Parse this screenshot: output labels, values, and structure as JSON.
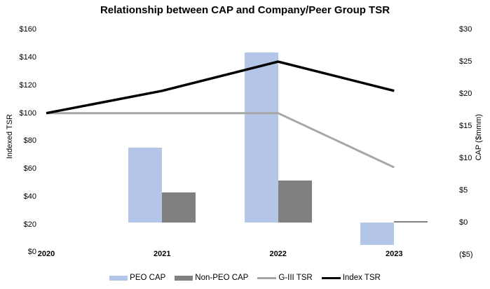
{
  "title": "Relationship between CAP and Company/Peer Group TSR",
  "chart_data": {
    "type": "combo-bar-line",
    "categories": [
      "2020",
      "2021",
      "2022",
      "2023"
    ],
    "series": [
      {
        "name": "PEO CAP",
        "type": "bar",
        "axis": "right",
        "color": "#B4C6E7",
        "values": [
          null,
          11.6,
          26.5,
          -3.5
        ]
      },
      {
        "name": "Non-PEO CAP",
        "type": "bar",
        "axis": "right",
        "color": "#808080",
        "values": [
          null,
          4.6,
          6.5,
          0.2
        ]
      },
      {
        "name": "G-III TSR",
        "type": "line",
        "axis": "left",
        "color": "#A6A6A6",
        "values": [
          100,
          100,
          100,
          61
        ]
      },
      {
        "name": "Index TSR",
        "type": "line",
        "axis": "left",
        "color": "#000000",
        "values": [
          100,
          116,
          137,
          116
        ]
      }
    ],
    "left_axis": {
      "label": "Indexed TSR",
      "ticks": [
        "$160",
        "$140",
        "$120",
        "$100",
        "$80",
        "$60",
        "$40",
        "$20",
        "$0"
      ],
      "range": [
        0,
        160
      ]
    },
    "right_axis": {
      "label": "CAP ($mmm)",
      "ticks": [
        "$30",
        "$25",
        "$20",
        "$15",
        "$10",
        "$5",
        "$0",
        "($5)"
      ],
      "range": [
        -5,
        30
      ]
    },
    "legend_position": "bottom",
    "grid": false,
    "background": "#ffffff"
  }
}
